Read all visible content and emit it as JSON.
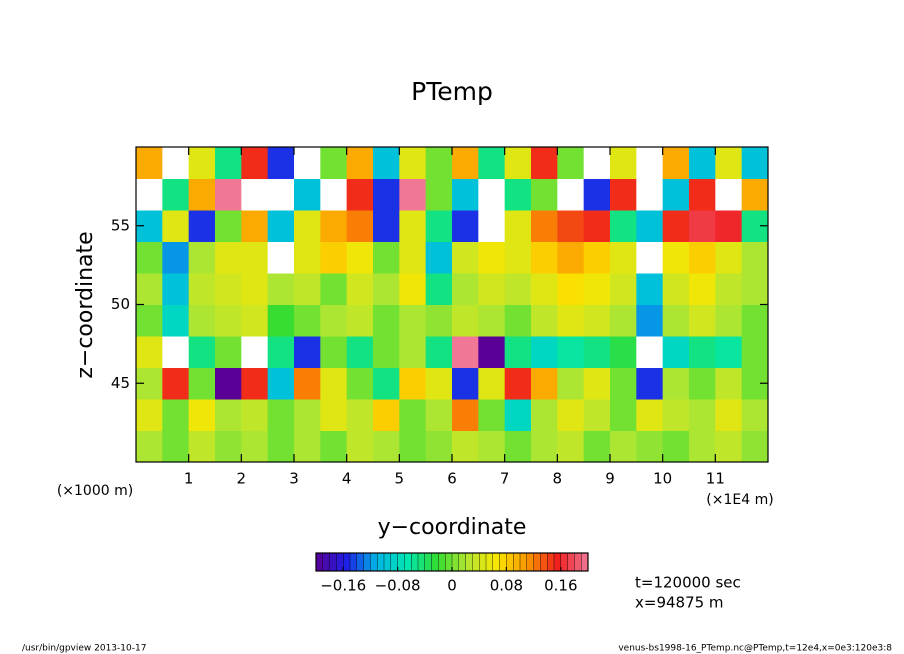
{
  "chart_data": {
    "type": "heatmap",
    "title": "PTemp",
    "x_label": "y−coordinate",
    "y_label": "z−coordinate",
    "x_unit": "(×1E4 m)",
    "y_unit": "(×1000 m)",
    "x": [
      0.25,
      0.75,
      1.25,
      1.75,
      2.25,
      2.75,
      3.25,
      3.75,
      4.25,
      4.75,
      5.25,
      5.75,
      6.25,
      6.75,
      7.25,
      7.75,
      8.25,
      8.75,
      9.25,
      9.75,
      10.25,
      10.75,
      11.25,
      11.75
    ],
    "y": [
      41,
      43,
      45,
      47,
      49,
      51,
      53,
      55,
      57,
      59
    ],
    "values": [
      [
        0.02,
        0.0,
        0.03,
        0.01,
        0.02,
        0.0,
        0.02,
        0.0,
        0.03,
        0.02,
        0.0,
        0.01,
        0.03,
        0.02,
        0.0,
        0.02,
        0.03,
        0.0,
        0.02,
        0.01,
        0.0,
        0.02,
        0.03,
        0.01
      ],
      [
        0.05,
        0.0,
        0.06,
        0.02,
        0.03,
        0.0,
        0.02,
        0.05,
        0.03,
        0.08,
        0.0,
        0.02,
        0.12,
        0.0,
        -0.08,
        0.02,
        0.05,
        0.03,
        0.0,
        0.05,
        0.03,
        0.02,
        0.05,
        0.02
      ],
      [
        0.02,
        0.15,
        0.0,
        -0.2,
        0.15,
        -0.1,
        0.12,
        0.05,
        0.0,
        -0.05,
        0.08,
        0.05,
        -0.15,
        0.05,
        0.15,
        0.1,
        0.02,
        0.05,
        0.0,
        -0.15,
        0.02,
        0.0,
        0.03,
        0.0
      ],
      [
        0.05,
        0.25,
        -0.05,
        0.0,
        0.25,
        -0.05,
        -0.15,
        0.0,
        -0.05,
        0.0,
        0.02,
        -0.05,
        0.2,
        -0.2,
        -0.05,
        -0.08,
        -0.06,
        -0.05,
        -0.03,
        0.25,
        -0.08,
        -0.05,
        -0.06,
        0.0
      ],
      [
        0.0,
        -0.08,
        0.02,
        0.03,
        0.04,
        -0.02,
        0.0,
        0.02,
        0.03,
        0.0,
        0.02,
        0.01,
        0.03,
        0.02,
        0.0,
        0.03,
        0.05,
        0.04,
        0.02,
        -0.12,
        0.02,
        0.04,
        0.02,
        0.0
      ],
      [
        0.02,
        -0.1,
        0.03,
        0.04,
        0.05,
        0.02,
        0.03,
        0.0,
        0.04,
        0.02,
        0.06,
        -0.05,
        0.02,
        0.04,
        0.03,
        0.05,
        0.07,
        0.06,
        0.04,
        -0.1,
        0.04,
        0.06,
        0.03,
        0.02
      ],
      [
        0.0,
        -0.12,
        0.02,
        0.05,
        0.05,
        -0.25,
        0.05,
        0.08,
        0.06,
        0.0,
        0.05,
        -0.1,
        0.04,
        0.06,
        0.05,
        0.08,
        0.1,
        0.08,
        0.05,
        -0.25,
        0.06,
        0.08,
        0.05,
        0.02
      ],
      [
        -0.1,
        0.05,
        -0.15,
        0.0,
        0.1,
        -0.1,
        0.05,
        0.1,
        0.12,
        -0.15,
        0.05,
        -0.05,
        -0.15,
        -0.25,
        0.05,
        0.12,
        0.14,
        0.15,
        -0.05,
        -0.1,
        0.15,
        0.17,
        0.16,
        -0.05
      ],
      [
        0.25,
        -0.05,
        0.1,
        0.2,
        0.25,
        0.25,
        -0.1,
        0.25,
        0.15,
        -0.15,
        0.2,
        0.0,
        -0.1,
        0.25,
        -0.05,
        0.0,
        0.25,
        -0.15,
        0.15,
        0.25,
        -0.1,
        0.15,
        0.25,
        0.1
      ],
      [
        0.1,
        0.25,
        0.05,
        -0.05,
        0.15,
        -0.15,
        0.25,
        0.0,
        0.1,
        -0.1,
        0.05,
        0.0,
        0.1,
        -0.05,
        0.05,
        0.15,
        0.0,
        0.25,
        0.05,
        0.25,
        0.1,
        -0.1,
        0.05,
        -0.1
      ]
    ],
    "xlim": [
      0,
      12
    ],
    "ylim": [
      40,
      60
    ],
    "xticks": [
      1,
      2,
      3,
      4,
      5,
      6,
      7,
      8,
      9,
      10,
      11
    ],
    "yticks": [
      45,
      50,
      55
    ],
    "clim": [
      -0.2,
      0.2
    ],
    "cticks": [
      {
        "value": -0.16,
        "label": "−0.16"
      },
      {
        "value": -0.08,
        "label": "−0.08"
      },
      0,
      0.08,
      0.16
    ],
    "colormap": [
      "#5a0096",
      "#1e1ee6",
      "#00b4e6",
      "#00e6b4",
      "#32dc32",
      "#b4e632",
      "#fae600",
      "#fa9600",
      "#f01e1e",
      "#f07896"
    ],
    "annotations": [
      "t=120000 sec",
      "x=94875 m"
    ],
    "footer_left": "/usr/bin/gpview  2013-10-17",
    "footer_right": "venus-bs1998-16_PTemp.nc@PTemp,t=12e4,x=0e3:120e3:8"
  }
}
